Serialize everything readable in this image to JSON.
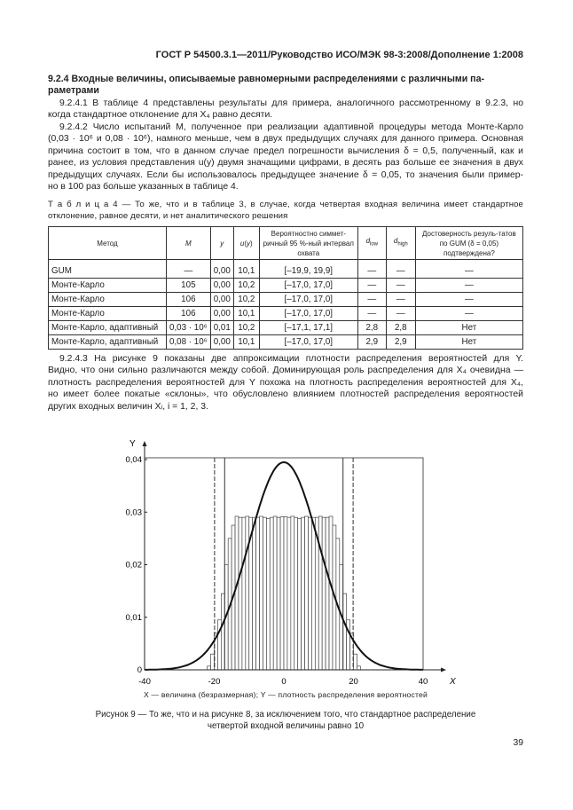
{
  "header": "ГОСТ Р 54500.3.1—2011/Руководство ИСО/МЭК 98-3:2008/Дополнение 1:2008",
  "section_heading": [
    "9.2.4 Входные величины, описываемые равномерными распределениями с различными па-",
    "раметрами"
  ],
  "paragraphs": [
    {
      "id": "p-9-2-4-1",
      "lines": [
        "9.2.4.1 В таблице 4 представлены результаты для примера, аналогичного рассмотренному в 9.2.3, но",
        "когда стандартное отклонение для X₄ равно десяти."
      ]
    },
    {
      "id": "p-9-2-4-2",
      "lines": [
        "9.2.4.2 Число испытаний M, полученное при реализации адаптивной процедуры метода Монте-Карло",
        "(0,03 · 10⁶ и 0,08 · 10⁶), намного меньше, чем в двух предыдущих случаях для данного примера. Основная",
        "причина состоит в том, что в данном случае предел погрешности вычисления δ = 0,5, полученный, как и",
        "ранее, из условия представления u(y) двумя значащими цифрами, в десять раз больше ее значения в двух",
        "предыдущих случаях. Если бы использовалось предыдущее значение δ = 0,05, то значения  были пример-",
        "но в 100 раз больше указанных в таблице 4."
      ]
    }
  ],
  "table": {
    "caption": [
      "Т а б л и ц а  4 — То же, что и в таблице 3, в случае, когда четвертая входная величина имеет стандартное",
      "отклонение, равное десяти, и нет аналитического решения"
    ],
    "headers": [
      "Метод",
      "M",
      "y",
      "u(y)",
      "Вероятностно симмет-ричный 95 %-ный интервал охвата",
      "d_low",
      "d_high",
      "Достоверность резуль-татов по GUM (δ = 0,05) подтверждена?"
    ],
    "rows": [
      [
        "GUM",
        "—",
        "0,00",
        "10,1",
        "[–19,9, 19,9]",
        "—",
        "—",
        "—"
      ],
      [
        "Монте-Карло",
        "105",
        "0,00",
        "10,2",
        "[–17,0, 17,0]",
        "—",
        "—",
        "—"
      ],
      [
        "Монте-Карло",
        "106",
        "0,00",
        "10,2",
        "[–17,0, 17,0]",
        "—",
        "—",
        "—"
      ],
      [
        "Монте-Карло",
        "106",
        "0,00",
        "10,1",
        "[–17,0, 17,0]",
        "—",
        "—",
        "—"
      ],
      [
        "Монте-Карло, адаптивный",
        "0,03 · 10⁶",
        "0,01",
        "10,2",
        "[–17,1, 17,1]",
        "2,8",
        "2,8",
        "Нет"
      ],
      [
        "Монте-Карло, адаптивный",
        "0,08 · 10⁶",
        "0,00",
        "10,1",
        "[–17,0, 17,0]",
        "2,9",
        "2,9",
        "Нет"
      ]
    ]
  },
  "paragraph_3": [
    "9.2.4.3 На рисунке 9 показаны две аппроксимации плотности распределения вероятностей для Y.",
    "Видно, что они сильно различаются между собой. Доминирующая роль распределения для X₄ очевидна —",
    "плотность распределения вероятностей для Y похожа на плотность распределения вероятностей для X₄,",
    "но имеет более покатые «склоны», что обусловлено влиянием плотностей распределения вероятностей",
    "других входных величин Xᵢ, i = 1, 2, 3."
  ],
  "chart_data": {
    "type": "bar",
    "xlabel": "X",
    "ylabel": "Y",
    "xlim": [
      -40,
      40
    ],
    "ylim": [
      0,
      0.04
    ],
    "x_ticks": [
      "-40",
      "-20",
      "0",
      "20",
      "40"
    ],
    "y_ticks": [
      "0",
      "0,01",
      "0,02",
      "0,03",
      "0,04"
    ],
    "grid": false,
    "histogram": {
      "bin_width": 1,
      "bin_centers": [
        -21.5,
        -20.5,
        -19.5,
        -18.5,
        -17.5,
        -16.5,
        -15.5,
        -14.5,
        -13.5,
        -12.5,
        -11.5,
        -10.5,
        -9.5,
        -8.5,
        -7.5,
        -6.5,
        -5.5,
        -4.5,
        -3.5,
        -2.5,
        -1.5,
        -0.5,
        0.5,
        1.5,
        2.5,
        3.5,
        4.5,
        5.5,
        6.5,
        7.5,
        8.5,
        9.5,
        10.5,
        11.5,
        12.5,
        13.5,
        14.5,
        15.5,
        16.5,
        17.5,
        18.5,
        19.5,
        20.5,
        21.5
      ],
      "values": [
        0.0007,
        0.003,
        0.007,
        0.0095,
        0.0145,
        0.02,
        0.025,
        0.0275,
        0.0292,
        0.029,
        0.029,
        0.0292,
        0.029,
        0.029,
        0.029,
        0.0292,
        0.029,
        0.0288,
        0.029,
        0.0292,
        0.029,
        0.0291,
        0.0291,
        0.029,
        0.0292,
        0.029,
        0.0288,
        0.029,
        0.0292,
        0.029,
        0.029,
        0.029,
        0.0292,
        0.029,
        0.029,
        0.0292,
        0.0275,
        0.025,
        0.02,
        0.0145,
        0.0095,
        0.007,
        0.003,
        0.0007
      ]
    },
    "gaussian_curve": {
      "mean": 0,
      "sd": 10.1
    },
    "interval_lines": [
      {
        "style": "solid",
        "x": [
          -17.0,
          17.0
        ]
      },
      {
        "style": "dashed",
        "x": [
          -19.9,
          19.9
        ]
      }
    ],
    "axis_caption": "X — величина (безразмерная); Y — плотность распределения вероятностей"
  },
  "figure_caption": [
    "Рисунок 9 — То же, что и на рисунке 8, за исключением того, что стандартное распределение",
    "четвертой входной величины равно 10"
  ],
  "page_number": "39"
}
